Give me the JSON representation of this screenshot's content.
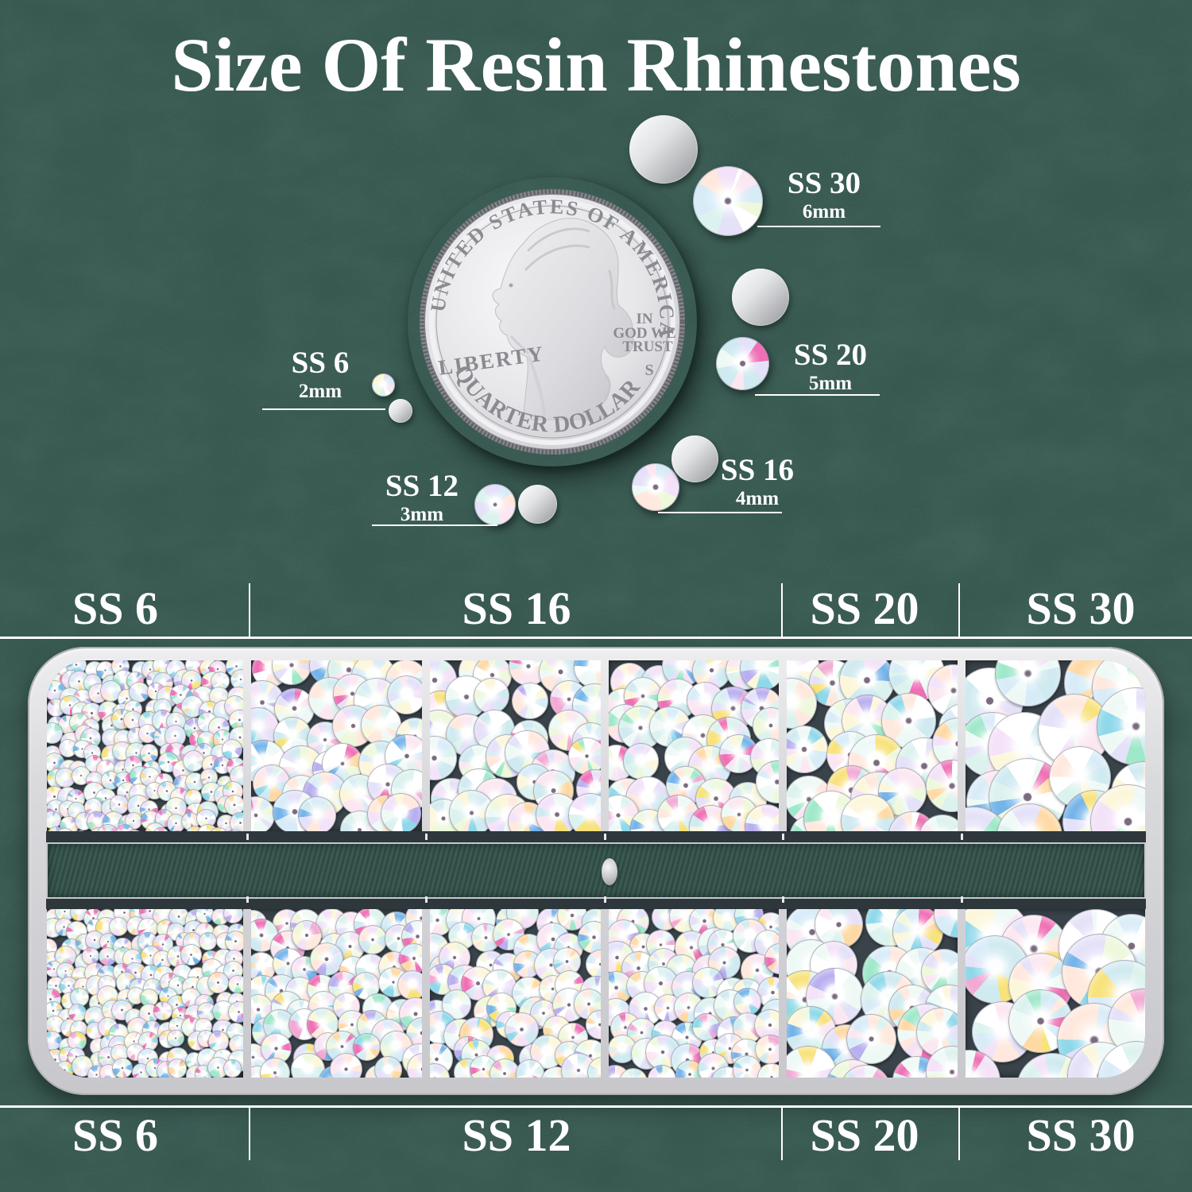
{
  "title": "Size Of Resin Rhinestones",
  "coin": {
    "top_text": "UNITED STATES OF AMERICA",
    "bottom_text": "QUARTER DOLLAR",
    "left_text": "LIBERTY",
    "motto_line1": "IN",
    "motto_line2": "GOD WE",
    "motto_line3": "TRUST",
    "mint_mark": "S"
  },
  "size_callouts": [
    {
      "label": "SS 6",
      "size": "2mm"
    },
    {
      "label": "SS 12",
      "size": "3mm"
    },
    {
      "label": "SS 16",
      "size": "4mm"
    },
    {
      "label": "SS 20",
      "size": "5mm"
    },
    {
      "label": "SS 30",
      "size": "6mm"
    }
  ],
  "box": {
    "top_labels": [
      "SS 6",
      "SS 16",
      "SS 20",
      "SS 30"
    ],
    "bottom_labels": [
      "SS 6",
      "SS 12",
      "SS 20",
      "SS 30"
    ],
    "top_compartments": [
      "SS 6",
      "SS 16",
      "SS 16",
      "SS 16",
      "SS 20",
      "SS 30"
    ],
    "bottom_compartments": [
      "SS 6",
      "SS 12",
      "SS 12",
      "SS 12",
      "SS 20",
      "SS 30"
    ]
  },
  "colors": {
    "background": "#33524a",
    "text": "#ffffff",
    "box_frame": "#d9d9dd",
    "compartment_bg": "#394349",
    "stone_ab_accents": [
      "#8fd8ea",
      "#f2a9d4",
      "#b9aef0",
      "#ffd9a4",
      "#ef6fb5"
    ]
  }
}
